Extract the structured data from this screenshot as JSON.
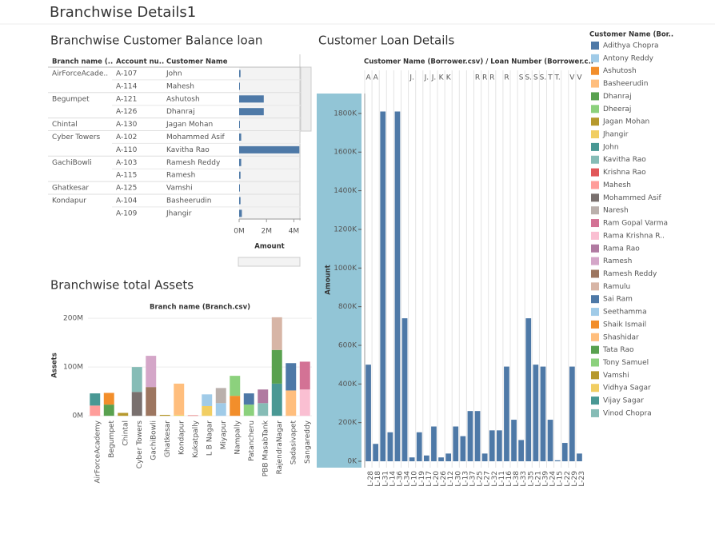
{
  "title": "Branchwise Details1",
  "chart_data": [
    {
      "type": "hbar",
      "title": "Branchwise Customer Balance loan",
      "columns": [
        "Branch name (..",
        "Account nu..",
        "Customer Name"
      ],
      "branches": [
        "AirForceAcade..",
        null,
        "Begumpet",
        null,
        "Chintal",
        "Cyber Towers",
        null,
        "GachiBowli",
        null,
        "Ghatkesar",
        "Kondapur",
        null
      ],
      "accounts": [
        "A-107",
        "A-114",
        "A-121",
        "A-126",
        "A-130",
        "A-102",
        "A-110",
        "A-103",
        "A-115",
        "A-125",
        "A-104",
        "A-109"
      ],
      "customers": [
        "John",
        "Mahesh",
        "Ashutosh",
        "Dhanraj",
        "Jagan Mohan",
        "Mohammed Asif",
        "Kavitha Rao",
        "Ramesh Reddy",
        "Ramesh",
        "Vamshi",
        "Basheerudin",
        "Jhangir"
      ],
      "values": [
        0.1,
        0.05,
        1.8,
        1.8,
        0.05,
        0.15,
        4.4,
        0.15,
        0.1,
        0.02,
        0.1,
        0.2
      ],
      "color": "#4e79a7",
      "xlabel": "Amount",
      "xlim": [
        0,
        4.5
      ],
      "xticks": [
        {
          "value": 0,
          "label": "0M"
        },
        {
          "value": 2,
          "label": "2M"
        },
        {
          "value": 4,
          "label": "4M"
        }
      ]
    },
    {
      "type": "stacked",
      "title": "Branchwise total Assets",
      "xlabel": "Branch name (Branch.csv)",
      "ylabel": "Assets",
      "categories": [
        "AirForceAcademy",
        "Begumpet",
        "Chintal",
        "Cyber Towers",
        "GachiBowli",
        "Ghatkesar",
        "Kondapur",
        "Kukatpally",
        "L B Nagar",
        "Miyapur",
        "Nampally",
        "Patancheru",
        "PBB MasabTank",
        "RajendraNagar",
        "Sadasivapet",
        "Sangareddy"
      ],
      "ylim": [
        -3,
        210
      ],
      "yticks": [
        {
          "value": 0,
          "label": "0M"
        },
        {
          "value": 100,
          "label": "100M"
        },
        {
          "value": 200,
          "label": "200M"
        }
      ],
      "grid": true,
      "legend_title": "Customer Name (Bor..",
      "series": [
        {
          "name": "Adithya Chopra",
          "color": "#4e79a7",
          "values": [
            null,
            null,
            null,
            null,
            null,
            null,
            null,
            null,
            null,
            null,
            null,
            null,
            null,
            null,
            56,
            null
          ]
        },
        {
          "name": "Antony Reddy",
          "color": "#a0cbe8",
          "values": [
            null,
            null,
            null,
            null,
            null,
            null,
            null,
            null,
            24,
            null,
            null,
            null,
            null,
            null,
            null,
            null
          ]
        },
        {
          "name": "Ashutosh",
          "color": "#f28e2b",
          "values": [
            null,
            24,
            null,
            null,
            null,
            null,
            null,
            null,
            null,
            null,
            null,
            null,
            null,
            null,
            null,
            null
          ]
        },
        {
          "name": "Basheerudin",
          "color": "#ffbe7d",
          "values": [
            null,
            null,
            null,
            null,
            null,
            null,
            64,
            null,
            null,
            null,
            null,
            null,
            null,
            null,
            null,
            null
          ]
        },
        {
          "name": "Dhanraj",
          "color": "#59a14f",
          "values": [
            null,
            23,
            null,
            null,
            null,
            null,
            null,
            null,
            null,
            null,
            null,
            null,
            null,
            null,
            null,
            null
          ]
        },
        {
          "name": "Dheeraj",
          "color": "#8cd17d",
          "values": [
            null,
            null,
            null,
            null,
            null,
            null,
            null,
            null,
            null,
            null,
            41,
            null,
            null,
            null,
            null,
            null
          ]
        },
        {
          "name": "Jagan Mohan",
          "color": "#b6992d",
          "values": [
            null,
            null,
            6,
            null,
            null,
            null,
            null,
            null,
            null,
            null,
            null,
            null,
            null,
            null,
            null,
            null
          ]
        },
        {
          "name": "Jhangir",
          "color": "#f1ce63",
          "values": [
            null,
            null,
            null,
            null,
            null,
            null,
            2,
            null,
            null,
            null,
            null,
            null,
            null,
            null,
            null,
            null
          ]
        },
        {
          "name": "John",
          "color": "#499894",
          "values": [
            25,
            null,
            null,
            null,
            null,
            null,
            null,
            null,
            null,
            null,
            null,
            null,
            null,
            null,
            null,
            null
          ]
        },
        {
          "name": "Kavitha Rao",
          "color": "#86bcb6",
          "values": [
            null,
            null,
            null,
            51,
            null,
            null,
            null,
            null,
            null,
            null,
            null,
            null,
            null,
            null,
            null,
            null
          ]
        },
        {
          "name": "Krishna Rao",
          "color": "#e15759",
          "values": [
            null,
            null,
            null,
            null,
            null,
            null,
            null,
            1,
            null,
            null,
            null,
            null,
            null,
            null,
            null,
            null
          ]
        },
        {
          "name": "Mahesh",
          "color": "#ff9d9a",
          "values": [
            21,
            null,
            null,
            null,
            null,
            null,
            null,
            null,
            null,
            null,
            null,
            null,
            null,
            null,
            null,
            null
          ]
        },
        {
          "name": "Mohammed Asif",
          "color": "#79706e",
          "values": [
            null,
            null,
            null,
            49,
            null,
            null,
            null,
            null,
            null,
            null,
            null,
            null,
            null,
            null,
            null,
            null
          ]
        },
        {
          "name": "Naresh",
          "color": "#bab0ac",
          "values": [
            null,
            null,
            null,
            null,
            null,
            null,
            null,
            null,
            null,
            31,
            null,
            null,
            null,
            null,
            null,
            null
          ]
        },
        {
          "name": "Ram Gopal Varma",
          "color": "#d37295",
          "values": [
            null,
            null,
            null,
            null,
            null,
            null,
            null,
            null,
            null,
            null,
            null,
            null,
            null,
            null,
            null,
            57
          ]
        },
        {
          "name": "Rama Krishna R..",
          "color": "#fabfd2",
          "values": [
            null,
            null,
            null,
            null,
            null,
            null,
            null,
            null,
            null,
            null,
            null,
            null,
            null,
            null,
            null,
            54
          ]
        },
        {
          "name": "Rama Rao",
          "color": "#b07aa1",
          "values": [
            null,
            null,
            null,
            null,
            null,
            null,
            null,
            null,
            null,
            null,
            null,
            null,
            28,
            null,
            null,
            null
          ]
        },
        {
          "name": "Ramesh",
          "color": "#d4a6c8",
          "values": [
            null,
            null,
            null,
            null,
            64,
            null,
            null,
            null,
            null,
            null,
            null,
            null,
            null,
            null,
            null,
            null
          ]
        },
        {
          "name": "Ramesh Reddy",
          "color": "#9d7660",
          "values": [
            null,
            null,
            null,
            null,
            59,
            null,
            null,
            null,
            null,
            null,
            null,
            null,
            null,
            null,
            null,
            null
          ]
        },
        {
          "name": "Ramulu",
          "color": "#d7b5a6",
          "values": [
            null,
            null,
            null,
            null,
            null,
            null,
            null,
            null,
            null,
            null,
            null,
            null,
            null,
            67,
            null,
            null
          ]
        },
        {
          "name": "Sai Ram",
          "color": "#4e79a7",
          "values": [
            null,
            null,
            null,
            null,
            null,
            null,
            null,
            null,
            null,
            null,
            null,
            23,
            null,
            null,
            null,
            null
          ]
        },
        {
          "name": "Seethamma",
          "color": "#a0cbe8",
          "values": [
            null,
            null,
            null,
            null,
            null,
            null,
            null,
            null,
            null,
            26,
            null,
            null,
            null,
            null,
            null,
            null
          ]
        },
        {
          "name": "Shaik Ismail",
          "color": "#f28e2b",
          "values": [
            null,
            null,
            null,
            null,
            null,
            null,
            null,
            null,
            null,
            null,
            41,
            null,
            null,
            null,
            null,
            null
          ]
        },
        {
          "name": "Shashidar",
          "color": "#ffbe7d",
          "values": [
            null,
            null,
            null,
            null,
            null,
            null,
            null,
            null,
            null,
            null,
            null,
            null,
            null,
            null,
            52,
            null
          ]
        },
        {
          "name": "Tata Rao",
          "color": "#59a14f",
          "values": [
            null,
            null,
            null,
            null,
            null,
            null,
            null,
            null,
            null,
            null,
            null,
            null,
            null,
            69,
            null,
            null
          ]
        },
        {
          "name": "Tony Samuel",
          "color": "#8cd17d",
          "values": [
            null,
            null,
            null,
            null,
            null,
            null,
            null,
            null,
            null,
            null,
            null,
            23,
            null,
            null,
            null,
            null
          ]
        },
        {
          "name": "Vamshi",
          "color": "#b6992d",
          "values": [
            null,
            null,
            null,
            null,
            null,
            2,
            null,
            null,
            null,
            null,
            null,
            null,
            null,
            null,
            null,
            null
          ]
        },
        {
          "name": "Vidhya Sagar",
          "color": "#f1ce63",
          "values": [
            null,
            null,
            null,
            null,
            null,
            null,
            null,
            null,
            20,
            null,
            null,
            null,
            null,
            null,
            null,
            null
          ]
        },
        {
          "name": "Vijay Sagar",
          "color": "#499894",
          "values": [
            null,
            null,
            null,
            null,
            null,
            null,
            null,
            null,
            null,
            null,
            null,
            null,
            null,
            66,
            null,
            null
          ]
        },
        {
          "name": "Vinod Chopra",
          "color": "#86bcb6",
          "values": [
            null,
            null,
            null,
            null,
            null,
            null,
            null,
            null,
            null,
            null,
            null,
            null,
            26,
            null,
            null,
            null
          ]
        }
      ]
    },
    {
      "type": "bar",
      "title": "Customer Loan Details",
      "header": "Customer Name (Borrower.csv)  /  Loan Number (Borrower.c..",
      "group_labels": [
        "A",
        "A",
        null,
        null,
        null,
        null,
        "J.",
        null,
        "J.",
        "J.",
        "K",
        "K",
        null,
        null,
        null,
        "R",
        "R",
        "R",
        null,
        "R",
        null,
        "S",
        "S.",
        "S",
        "S.",
        "T",
        "T.",
        null,
        "V",
        "V"
      ],
      "categories": [
        "L-28",
        "L-18",
        "L-31",
        "L-14",
        "L-36",
        "L-34",
        "L-10",
        "L-19",
        "L-17",
        "L-20",
        "L-26",
        "L-12",
        "L-30",
        "L-13",
        "L-37",
        "L-25",
        "L-27",
        "L-32",
        "L-11",
        "L-16",
        "L-38",
        "L-33",
        "L-35",
        "L-21",
        "L-39",
        "L-24",
        "L-15",
        "L-22",
        "L-29",
        "L-23"
      ],
      "values": [
        500,
        90,
        1810,
        150,
        1810,
        740,
        20,
        150,
        30,
        180,
        20,
        40,
        180,
        130,
        260,
        260,
        40,
        160,
        160,
        490,
        215,
        110,
        740,
        500,
        490,
        215,
        5,
        95,
        490,
        40
      ],
      "color": "#4e79a7",
      "ylabel": "Amount",
      "ylim": [
        -33,
        1903
      ],
      "yticks": [
        {
          "value": 0,
          "label": "0K"
        },
        {
          "value": 200,
          "label": "200K"
        },
        {
          "value": 400,
          "label": "400K"
        },
        {
          "value": 600,
          "label": "600K"
        },
        {
          "value": 800,
          "label": "800K"
        },
        {
          "value": 1000,
          "label": "1000K"
        },
        {
          "value": 1200,
          "label": "1200K"
        },
        {
          "value": 1400,
          "label": "1400K"
        },
        {
          "value": 1600,
          "label": "1600K"
        },
        {
          "value": 1800,
          "label": "1800K"
        }
      ]
    }
  ]
}
